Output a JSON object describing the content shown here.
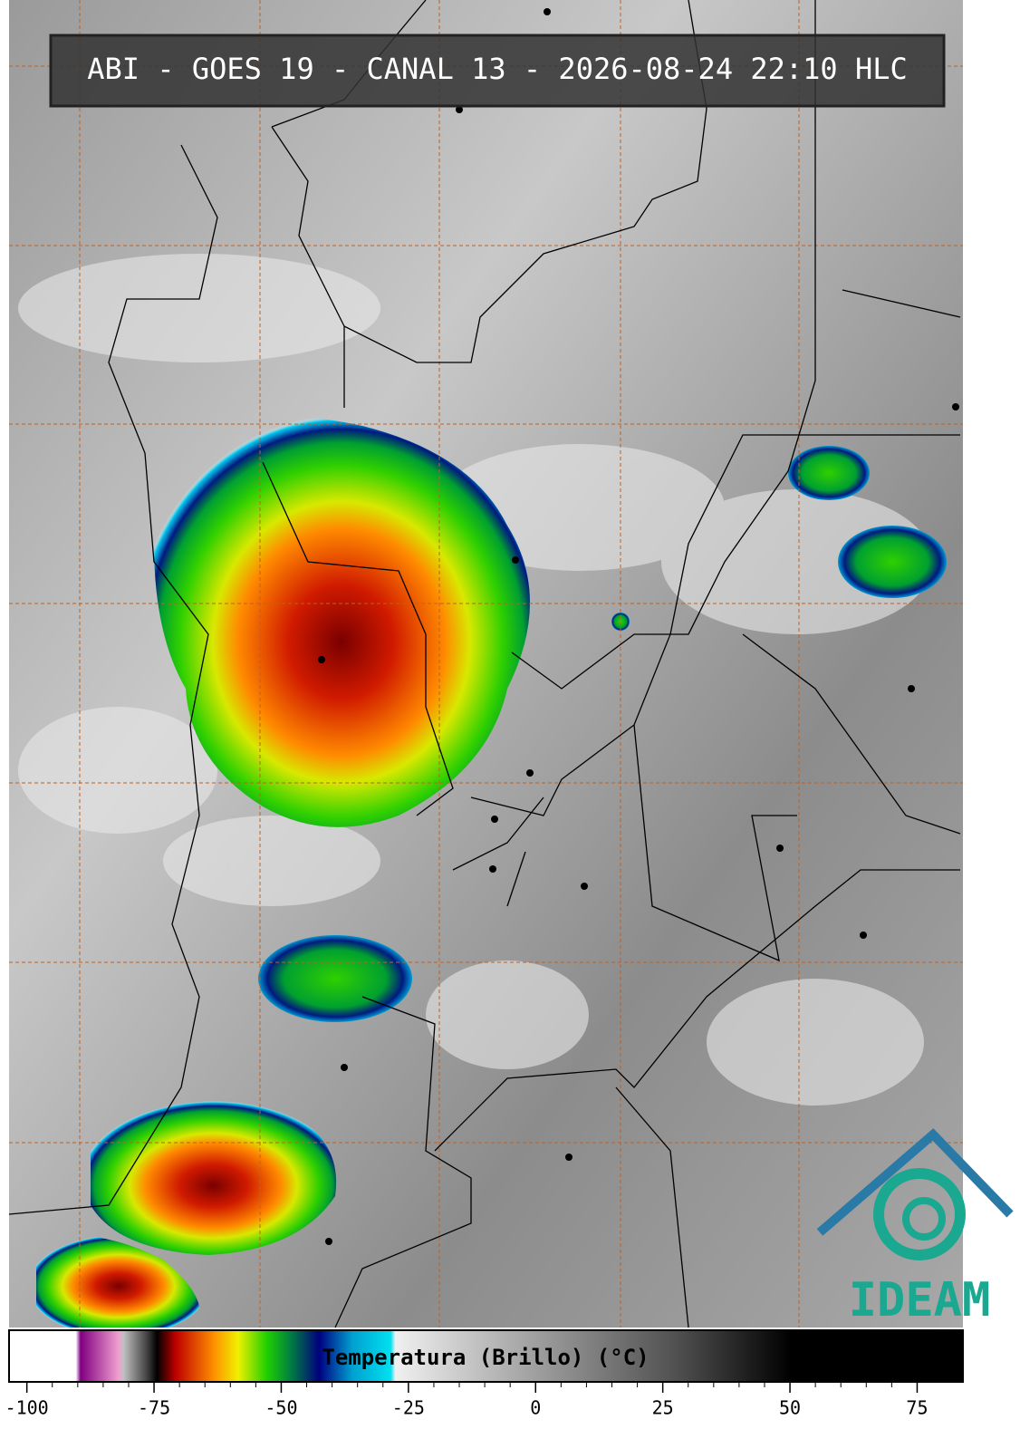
{
  "title": "ABI - GOES 19 - CANAL 13 - 2026-08-24 22:10 HLC",
  "colorbar": {
    "label": "Temperatura (Brillo) (°C)",
    "range": [
      -103.5,
      84
    ],
    "ticks": [
      -100,
      -75,
      -50,
      -25,
      0,
      25,
      50,
      75
    ]
  },
  "logo": {
    "text": "IDEAM"
  }
}
